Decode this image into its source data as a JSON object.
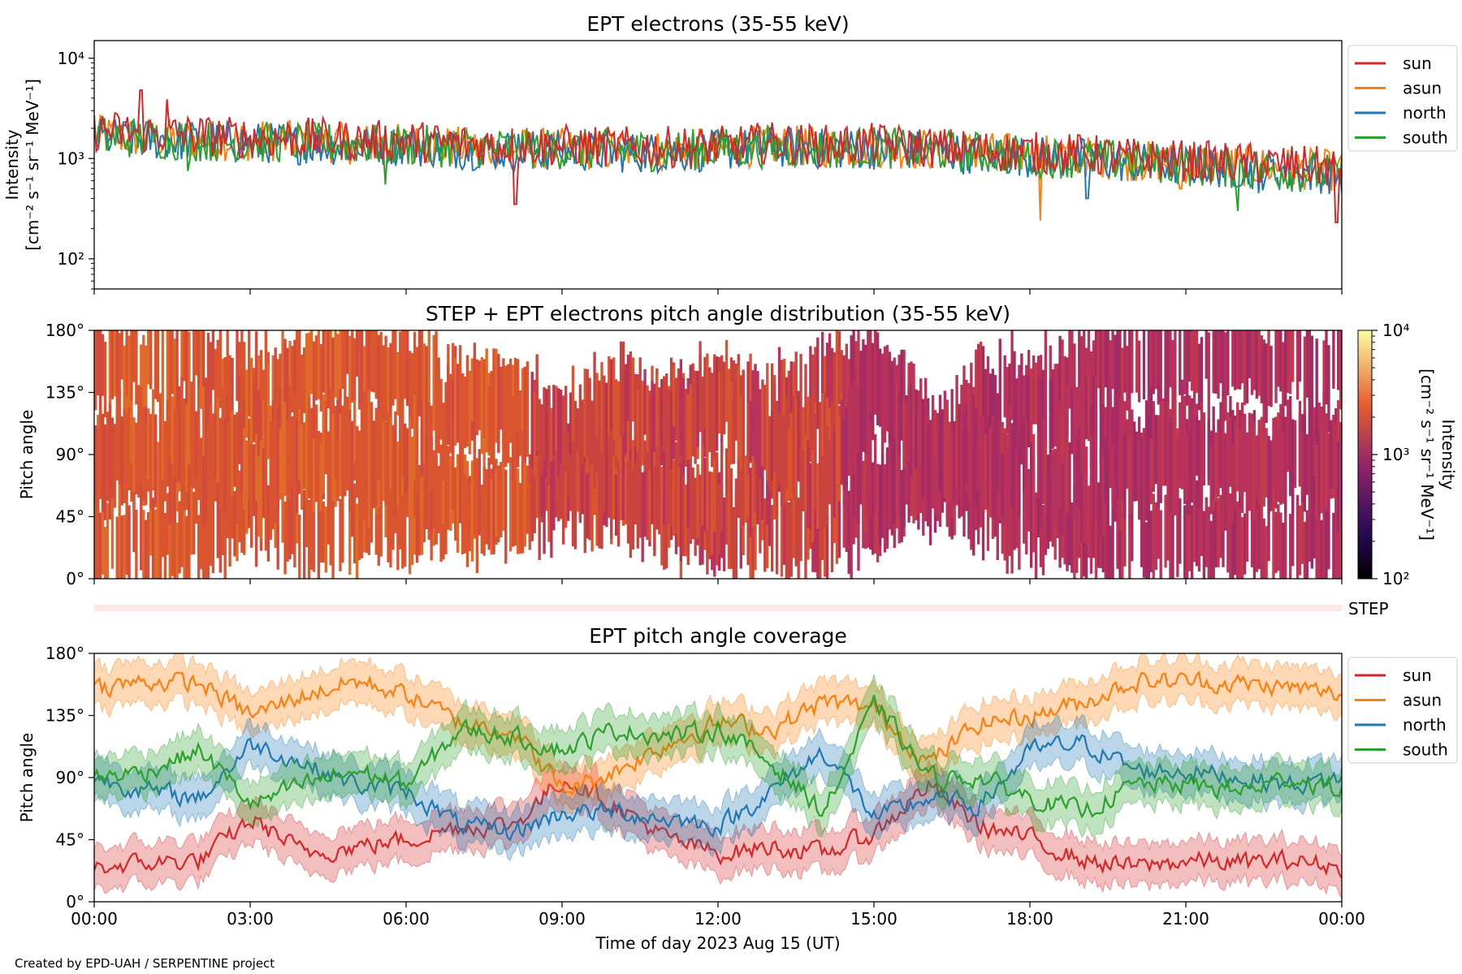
{
  "figure": {
    "footer": "Created by EPD-UAH / SERPENTINE project"
  },
  "colors": {
    "sun": "#d62728",
    "asun": "#ff7f0e",
    "north": "#1f77b4",
    "south": "#2ca02c"
  },
  "chart_data": [
    {
      "type": "line",
      "title": "EPT electrons (35-55 keV)",
      "ylabel_line1": "Intensity",
      "ylabel_line2": "[cm⁻² s⁻¹ sr⁻¹ MeV⁻¹]",
      "yscale": "log",
      "ylim": [
        50,
        15000
      ],
      "yticks": [
        "10²",
        "10³",
        "10⁴"
      ],
      "legend_placement": "outside-right",
      "grid": false,
      "x_hours": [
        0,
        1,
        2,
        3,
        4,
        5,
        6,
        7,
        8,
        9,
        10,
        11,
        12,
        13,
        14,
        15,
        16,
        17,
        18,
        19,
        20,
        21,
        22,
        23,
        24
      ],
      "series": [
        {
          "name": "sun",
          "values": [
            1900,
            1800,
            1700,
            1600,
            1600,
            1500,
            1500,
            1400,
            1350,
            1350,
            1300,
            1300,
            1300,
            1450,
            1350,
            1400,
            1300,
            1200,
            1150,
            1100,
            1000,
            950,
            900,
            850,
            800
          ],
          "spikes": [
            [
              0.9,
              4800
            ],
            [
              1.4,
              3900
            ],
            [
              8.1,
              350
            ],
            [
              23.9,
              230
            ]
          ]
        },
        {
          "name": "asun",
          "values": [
            1700,
            1600,
            1550,
            1500,
            1500,
            1400,
            1400,
            1300,
            1250,
            1250,
            1200,
            1200,
            1250,
            1350,
            1300,
            1300,
            1250,
            1150,
            1100,
            1050,
            950,
            900,
            850,
            800,
            750
          ],
          "spikes": [
            [
              18.2,
              240
            ],
            [
              20.9,
              500
            ]
          ]
        },
        {
          "name": "north",
          "values": [
            1600,
            1550,
            1500,
            1450,
            1400,
            1350,
            1350,
            1250,
            1200,
            1200,
            1150,
            1150,
            1200,
            1300,
            1250,
            1250,
            1200,
            1100,
            1050,
            1000,
            900,
            850,
            800,
            750,
            700
          ],
          "spikes": [
            [
              19.1,
              400
            ],
            [
              22.4,
              450
            ]
          ]
        },
        {
          "name": "south",
          "values": [
            1650,
            1600,
            1500,
            1450,
            1450,
            1400,
            1350,
            1300,
            1250,
            1250,
            1200,
            1200,
            1250,
            1300,
            1250,
            1300,
            1200,
            1150,
            1050,
            1000,
            950,
            850,
            800,
            750,
            700
          ],
          "spikes": [
            [
              1.8,
              750
            ],
            [
              5.6,
              550
            ],
            [
              22.0,
              300
            ]
          ]
        }
      ]
    },
    {
      "type": "heatmap",
      "title": "STEP + EPT electrons pitch angle distribution (35-55 keV)",
      "ylabel": "Pitch angle",
      "ylim": [
        0,
        180
      ],
      "yticks": [
        "0°",
        "45°",
        "90°",
        "135°",
        "180°"
      ],
      "colorbar": {
        "label_line1": "Intensity",
        "label_line2": "[cm⁻² s⁻¹ sr⁻¹ MeV⁻¹]",
        "scale": "log",
        "range": [
          100,
          10000
        ],
        "ticks": [
          "10²",
          "10³",
          "10⁴"
        ],
        "colormap": "plasma"
      },
      "step_label": "STEP"
    },
    {
      "type": "line",
      "title": "EPT pitch angle coverage",
      "ylabel": "Pitch angle",
      "xlabel": "Time of day 2023 Aug 15 (UT)",
      "ylim": [
        0,
        180
      ],
      "yticks": [
        "0°",
        "45°",
        "90°",
        "135°",
        "180°"
      ],
      "xticks": [
        "00:00",
        "03:00",
        "06:00",
        "09:00",
        "12:00",
        "15:00",
        "18:00",
        "21:00",
        "00:00"
      ],
      "legend_placement": "outside-right",
      "band_half_width_deg": 15,
      "x_hours": [
        0,
        1,
        2,
        3,
        4,
        5,
        6,
        7,
        8,
        9,
        10,
        11,
        12,
        13,
        14,
        15,
        16,
        17,
        18,
        19,
        20,
        21,
        22,
        23,
        24
      ],
      "series": [
        {
          "name": "sun",
          "values": [
            25,
            28,
            30,
            60,
            35,
            40,
            45,
            55,
            55,
            90,
            70,
            45,
            35,
            40,
            35,
            50,
            85,
            55,
            45,
            30,
            25,
            30,
            28,
            30,
            25
          ]
        },
        {
          "name": "asun",
          "values": [
            155,
            160,
            158,
            135,
            150,
            160,
            150,
            130,
            125,
            80,
            95,
            115,
            130,
            125,
            145,
            140,
            100,
            130,
            135,
            145,
            160,
            160,
            158,
            155,
            150
          ]
        },
        {
          "name": "north",
          "values": [
            90,
            80,
            75,
            115,
            100,
            85,
            80,
            55,
            50,
            65,
            65,
            60,
            55,
            80,
            110,
            60,
            75,
            70,
            110,
            115,
            95,
            95,
            90,
            85,
            90
          ]
        },
        {
          "name": "south",
          "values": [
            90,
            95,
            110,
            70,
            85,
            95,
            85,
            125,
            120,
            110,
            125,
            120,
            125,
            100,
            65,
            145,
            90,
            90,
            75,
            65,
            85,
            85,
            80,
            90,
            80
          ]
        }
      ]
    }
  ]
}
